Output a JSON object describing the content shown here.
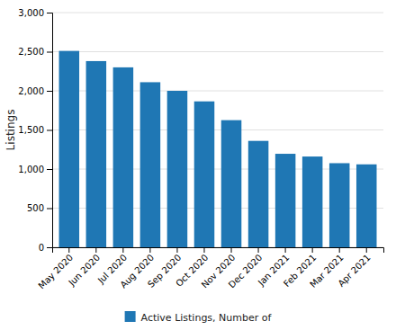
{
  "chart_data": {
    "type": "bar",
    "ylabel": "Listings",
    "categories": [
      "May 2020",
      "Jun 2020",
      "Jul 2020",
      "Aug 2020",
      "Sep 2020",
      "Oct 2020",
      "Nov 2020",
      "Dec 2020",
      "Jan 2021",
      "Feb 2021",
      "Mar 2021",
      "Apr 2021"
    ],
    "series": [
      {
        "name": "Active Listings, Number of",
        "values": [
          2510,
          2380,
          2300,
          2110,
          2000,
          1865,
          1625,
          1360,
          1195,
          1160,
          1075,
          1060
        ]
      }
    ],
    "ylim": [
      0,
      3000
    ],
    "yticks": [
      0,
      500,
      {
        "value": 1000,
        "label": "1,000"
      },
      {
        "value": 1500,
        "label": "1,500"
      },
      {
        "value": 2000,
        "label": "2,000"
      },
      {
        "value": 2500,
        "label": "2,500"
      },
      {
        "value": 3000,
        "label": "3,000"
      }
    ],
    "grid": true,
    "legend": "bottom"
  }
}
